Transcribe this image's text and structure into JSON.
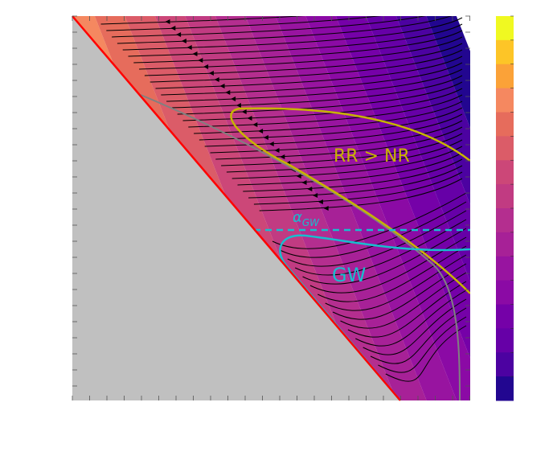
{
  "chart_data": {
    "type": "heatmap",
    "title": "",
    "xlabel": "",
    "ylabel": "",
    "grid": false,
    "colormap": "plasma",
    "colorbar": {
      "position": "right",
      "levels": 16
    },
    "regions": [
      {
        "name": "excluded-region",
        "color": "#c0c0c0"
      }
    ],
    "boundary_lines": [
      {
        "name": "diagonal-boundary",
        "color": "#ff0000"
      },
      {
        "name": "gray-separatrix",
        "color": "#808080"
      },
      {
        "name": "rr-nr-contour",
        "color": "#c8b400"
      },
      {
        "name": "gw-contour",
        "color": "#17becf"
      },
      {
        "name": "alpha-gw-dashed-line",
        "color": "#17becf",
        "style": "dashed"
      }
    ],
    "annotations": [
      {
        "text": "RR > NR",
        "color": "#c8b400"
      },
      {
        "text": "GW",
        "color": "#17becf"
      },
      {
        "text": "α",
        "sub": "GW",
        "color": "#17becf"
      }
    ]
  },
  "colors": {
    "excluded": "#c0c0c0",
    "diagonal": "#ff0000",
    "separatrix": "#808080",
    "rr_contour": "#c8b400",
    "gw_contour": "#17becf",
    "streamline": "#000000"
  }
}
